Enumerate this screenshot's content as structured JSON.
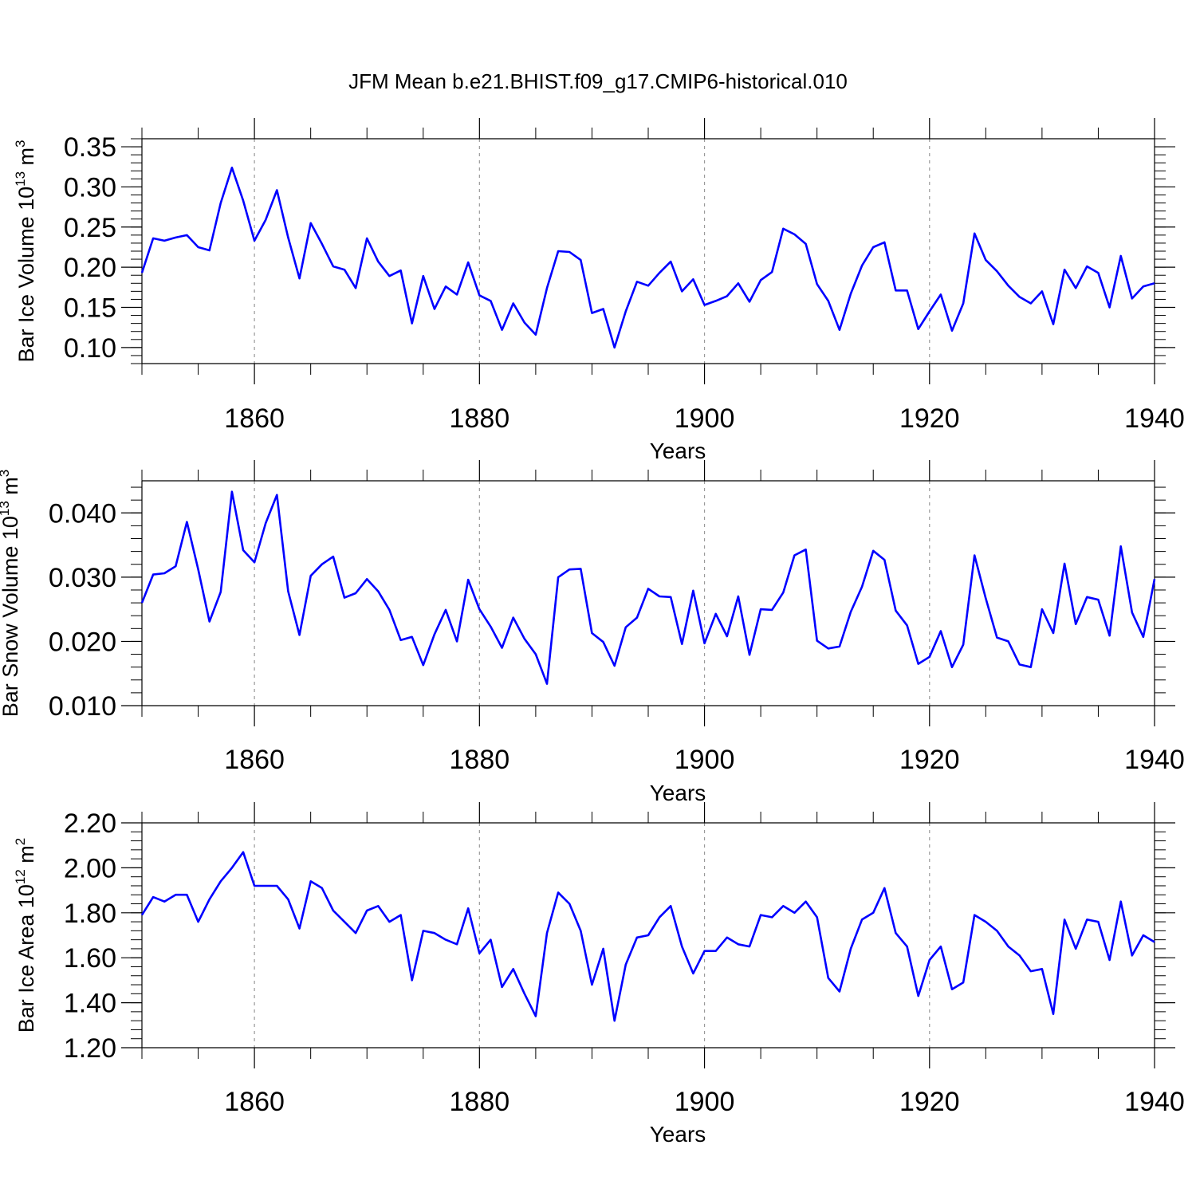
{
  "title": "JFM Mean b.e21.BHIST.f09_g17.CMIP6-historical.010",
  "colors": {
    "line": "#0000ff",
    "axis": "#000000",
    "grid": "#999999"
  },
  "chart_data": [
    {
      "type": "line",
      "name": "ice-volume",
      "ylabel_main": "Bar Ice Volume 10",
      "ylabel_sup": "13",
      "ylabel_unit": " m",
      "ylabel_unit_sup": "3",
      "xlabel": "Years",
      "xlim": [
        1850,
        1940
      ],
      "ylim": [
        0.08,
        0.36
      ],
      "xticks": [
        1860,
        1880,
        1900,
        1920,
        1940
      ],
      "xtick_labels": [
        "1860",
        "1880",
        "1900",
        "1920",
        "1940"
      ],
      "yticks": [
        0.1,
        0.15,
        0.2,
        0.25,
        0.3,
        0.35
      ],
      "ytick_labels": [
        "0.10",
        "0.15",
        "0.20",
        "0.25",
        "0.30",
        "0.35"
      ],
      "x": [
        1850,
        1851,
        1852,
        1853,
        1854,
        1855,
        1856,
        1857,
        1858,
        1859,
        1860,
        1861,
        1862,
        1863,
        1864,
        1865,
        1866,
        1867,
        1868,
        1869,
        1870,
        1871,
        1872,
        1873,
        1874,
        1875,
        1876,
        1877,
        1878,
        1879,
        1880,
        1881,
        1882,
        1883,
        1884,
        1885,
        1886,
        1887,
        1888,
        1889,
        1890,
        1891,
        1892,
        1893,
        1894,
        1895,
        1896,
        1897,
        1898,
        1899,
        1900,
        1901,
        1902,
        1903,
        1904,
        1905,
        1906,
        1907,
        1908,
        1909,
        1910,
        1911,
        1912,
        1913,
        1914,
        1915,
        1916,
        1917,
        1918,
        1919,
        1920,
        1921,
        1922,
        1923,
        1924,
        1925,
        1926,
        1927,
        1928,
        1929,
        1930,
        1931,
        1932,
        1933,
        1934,
        1935,
        1936,
        1937,
        1938,
        1939,
        1940
      ],
      "values": [
        0.193,
        0.236,
        0.233,
        0.237,
        0.24,
        0.225,
        0.221,
        0.28,
        0.324,
        0.283,
        0.233,
        0.259,
        0.296,
        0.237,
        0.186,
        0.255,
        0.229,
        0.201,
        0.197,
        0.174,
        0.236,
        0.207,
        0.189,
        0.196,
        0.13,
        0.189,
        0.148,
        0.176,
        0.166,
        0.206,
        0.165,
        0.158,
        0.122,
        0.155,
        0.131,
        0.116,
        0.174,
        0.22,
        0.219,
        0.209,
        0.143,
        0.148,
        0.1,
        0.145,
        0.182,
        0.177,
        0.193,
        0.207,
        0.17,
        0.185,
        0.153,
        0.158,
        0.164,
        0.18,
        0.157,
        0.184,
        0.194,
        0.248,
        0.241,
        0.229,
        0.179,
        0.158,
        0.122,
        0.167,
        0.202,
        0.225,
        0.231,
        0.171,
        0.171,
        0.123,
        0.145,
        0.166,
        0.121,
        0.155,
        0.242,
        0.209,
        0.195,
        0.177,
        0.163,
        0.155,
        0.17,
        0.129,
        0.197,
        0.174,
        0.201,
        0.193,
        0.15,
        0.214,
        0.161,
        0.176,
        0.18
      ]
    },
    {
      "type": "line",
      "name": "snow-volume",
      "ylabel_main": "Bar Snow Volume 10",
      "ylabel_sup": "13",
      "ylabel_unit": " m",
      "ylabel_unit_sup": "3",
      "xlabel": "Years",
      "xlim": [
        1850,
        1940
      ],
      "ylim": [
        0.01,
        0.045
      ],
      "xticks": [
        1860,
        1880,
        1900,
        1920,
        1940
      ],
      "xtick_labels": [
        "1860",
        "1880",
        "1900",
        "1920",
        "1940"
      ],
      "yticks": [
        0.01,
        0.02,
        0.03,
        0.04
      ],
      "ytick_labels": [
        "0.010",
        "0.020",
        "0.030",
        "0.040"
      ],
      "x": [
        1850,
        1851,
        1852,
        1853,
        1854,
        1855,
        1856,
        1857,
        1858,
        1859,
        1860,
        1861,
        1862,
        1863,
        1864,
        1865,
        1866,
        1867,
        1868,
        1869,
        1870,
        1871,
        1872,
        1873,
        1874,
        1875,
        1876,
        1877,
        1878,
        1879,
        1880,
        1881,
        1882,
        1883,
        1884,
        1885,
        1886,
        1887,
        1888,
        1889,
        1890,
        1891,
        1892,
        1893,
        1894,
        1895,
        1896,
        1897,
        1898,
        1899,
        1900,
        1901,
        1902,
        1903,
        1904,
        1905,
        1906,
        1907,
        1908,
        1909,
        1910,
        1911,
        1912,
        1913,
        1914,
        1915,
        1916,
        1917,
        1918,
        1919,
        1920,
        1921,
        1922,
        1923,
        1924,
        1925,
        1926,
        1927,
        1928,
        1929,
        1930,
        1931,
        1932,
        1933,
        1934,
        1935,
        1936,
        1937,
        1938,
        1939,
        1940
      ],
      "values": [
        0.026,
        0.0304,
        0.0306,
        0.0317,
        0.0386,
        0.0312,
        0.0231,
        0.0277,
        0.0433,
        0.0342,
        0.0323,
        0.0384,
        0.0428,
        0.0278,
        0.021,
        0.0302,
        0.032,
        0.0332,
        0.0268,
        0.0275,
        0.0297,
        0.0278,
        0.0249,
        0.0202,
        0.0207,
        0.0163,
        0.0211,
        0.0249,
        0.02,
        0.0296,
        0.025,
        0.0223,
        0.019,
        0.0237,
        0.0204,
        0.018,
        0.0134,
        0.03,
        0.0312,
        0.0313,
        0.0213,
        0.0199,
        0.0162,
        0.0222,
        0.0237,
        0.0282,
        0.027,
        0.0269,
        0.0196,
        0.0279,
        0.0197,
        0.0243,
        0.0208,
        0.027,
        0.0179,
        0.025,
        0.0249,
        0.0276,
        0.0334,
        0.0343,
        0.0201,
        0.0189,
        0.0192,
        0.0246,
        0.0285,
        0.0341,
        0.0327,
        0.0248,
        0.0225,
        0.0165,
        0.0176,
        0.0216,
        0.016,
        0.0195,
        0.0334,
        0.0267,
        0.0206,
        0.02,
        0.0164,
        0.016,
        0.025,
        0.0213,
        0.0321,
        0.0227,
        0.0269,
        0.0265,
        0.0209,
        0.0348,
        0.0245,
        0.0207,
        0.0297
      ]
    },
    {
      "type": "line",
      "name": "ice-area",
      "ylabel_main": "Bar Ice Area 10",
      "ylabel_sup": "12",
      "ylabel_unit": " m",
      "ylabel_unit_sup": "2",
      "xlabel": "Years",
      "xlim": [
        1850,
        1940
      ],
      "ylim": [
        1.2,
        2.2
      ],
      "xticks": [
        1860,
        1880,
        1900,
        1920,
        1940
      ],
      "xtick_labels": [
        "1860",
        "1880",
        "1900",
        "1920",
        "1940"
      ],
      "yticks": [
        1.2,
        1.4,
        1.6,
        1.8,
        2.0,
        2.2
      ],
      "ytick_labels": [
        "1.20",
        "1.40",
        "1.60",
        "1.80",
        "2.00",
        "2.20"
      ],
      "x": [
        1850,
        1851,
        1852,
        1853,
        1854,
        1855,
        1856,
        1857,
        1858,
        1859,
        1860,
        1861,
        1862,
        1863,
        1864,
        1865,
        1866,
        1867,
        1868,
        1869,
        1870,
        1871,
        1872,
        1873,
        1874,
        1875,
        1876,
        1877,
        1878,
        1879,
        1880,
        1881,
        1882,
        1883,
        1884,
        1885,
        1886,
        1887,
        1888,
        1889,
        1890,
        1891,
        1892,
        1893,
        1894,
        1895,
        1896,
        1897,
        1898,
        1899,
        1900,
        1901,
        1902,
        1903,
        1904,
        1905,
        1906,
        1907,
        1908,
        1909,
        1910,
        1911,
        1912,
        1913,
        1914,
        1915,
        1916,
        1917,
        1918,
        1919,
        1920,
        1921,
        1922,
        1923,
        1924,
        1925,
        1926,
        1927,
        1928,
        1929,
        1930,
        1931,
        1932,
        1933,
        1934,
        1935,
        1936,
        1937,
        1938,
        1939,
        1940
      ],
      "values": [
        1.79,
        1.87,
        1.85,
        1.88,
        1.88,
        1.76,
        1.86,
        1.94,
        2.0,
        2.07,
        1.92,
        1.92,
        1.92,
        1.86,
        1.73,
        1.94,
        1.91,
        1.81,
        1.76,
        1.71,
        1.81,
        1.83,
        1.76,
        1.79,
        1.5,
        1.72,
        1.71,
        1.68,
        1.66,
        1.82,
        1.62,
        1.68,
        1.47,
        1.55,
        1.44,
        1.34,
        1.71,
        1.89,
        1.84,
        1.72,
        1.48,
        1.64,
        1.32,
        1.57,
        1.69,
        1.7,
        1.78,
        1.83,
        1.65,
        1.53,
        1.63,
        1.63,
        1.69,
        1.66,
        1.65,
        1.79,
        1.78,
        1.83,
        1.8,
        1.85,
        1.78,
        1.51,
        1.45,
        1.64,
        1.77,
        1.8,
        1.91,
        1.71,
        1.65,
        1.43,
        1.59,
        1.65,
        1.46,
        1.49,
        1.79,
        1.76,
        1.72,
        1.65,
        1.61,
        1.54,
        1.55,
        1.35,
        1.77,
        1.64,
        1.77,
        1.76,
        1.59,
        1.85,
        1.61,
        1.7,
        1.67
      ]
    }
  ]
}
